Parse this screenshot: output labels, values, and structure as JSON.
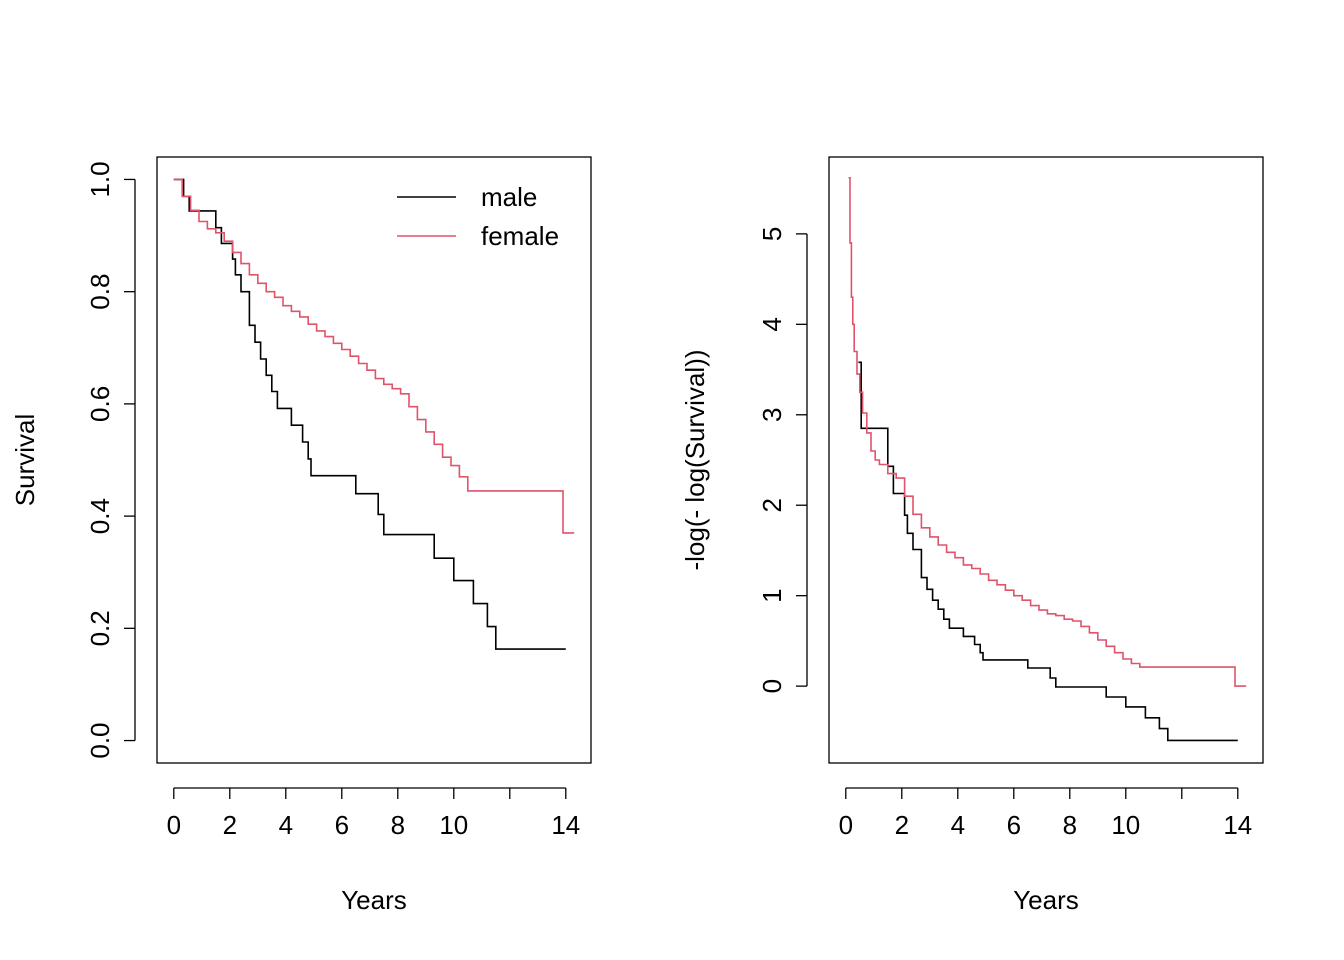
{
  "colors": {
    "male": "#000000",
    "female": "#DF536B",
    "axis": "#000000",
    "background": "#ffffff"
  },
  "chart_data": [
    {
      "type": "line",
      "step": true,
      "title": "",
      "xlabel": "Years",
      "ylabel": "Survival",
      "xlim": [
        -0.6,
        14.9
      ],
      "ylim": [
        -0.04,
        1.04
      ],
      "xticks": [
        0,
        2,
        4,
        6,
        8,
        10,
        12,
        14
      ],
      "xtick_labels": [
        "0",
        "2",
        "4",
        "6",
        "8",
        "10",
        "",
        "14"
      ],
      "yticks": [
        0,
        0.2,
        0.4,
        0.6,
        0.8,
        1.0
      ],
      "ytick_labels": [
        "0.0",
        "0.2",
        "0.4",
        "0.6",
        "0.8",
        "1.0"
      ],
      "grid": false,
      "legend": {
        "position": "top-right",
        "entries": [
          "male",
          "female"
        ]
      },
      "series": [
        {
          "name": "male",
          "x": [
            0,
            0.35,
            0.55,
            1.5,
            1.7,
            2.1,
            2.2,
            2.4,
            2.7,
            2.9,
            3.1,
            3.3,
            3.5,
            3.7,
            4.2,
            4.6,
            4.8,
            4.9,
            6.5,
            7.3,
            7.5,
            9.3,
            10.0,
            10.7,
            11.2,
            11.5,
            14.0
          ],
          "y": [
            1.0,
            0.97,
            0.944,
            0.914,
            0.886,
            0.858,
            0.83,
            0.8,
            0.74,
            0.71,
            0.68,
            0.651,
            0.622,
            0.592,
            0.562,
            0.532,
            0.502,
            0.472,
            0.44,
            0.403,
            0.367,
            0.325,
            0.285,
            0.244,
            0.203,
            0.163,
            0.163
          ]
        },
        {
          "name": "female",
          "x": [
            0,
            0.3,
            0.6,
            0.9,
            1.2,
            1.5,
            1.8,
            2.1,
            2.4,
            2.7,
            3.0,
            3.3,
            3.6,
            3.9,
            4.2,
            4.5,
            4.8,
            5.1,
            5.4,
            5.7,
            6.0,
            6.3,
            6.6,
            6.9,
            7.2,
            7.5,
            7.8,
            8.1,
            8.4,
            8.7,
            9.0,
            9.3,
            9.6,
            9.9,
            10.2,
            10.5,
            10.8,
            13.9,
            14.3
          ],
          "y": [
            1.0,
            0.97,
            0.945,
            0.925,
            0.912,
            0.905,
            0.89,
            0.87,
            0.85,
            0.83,
            0.815,
            0.8,
            0.79,
            0.775,
            0.765,
            0.755,
            0.742,
            0.73,
            0.72,
            0.708,
            0.697,
            0.685,
            0.672,
            0.66,
            0.645,
            0.635,
            0.627,
            0.618,
            0.595,
            0.572,
            0.55,
            0.528,
            0.505,
            0.49,
            0.47,
            0.445,
            0.445,
            0.37,
            0.37
          ]
        }
      ]
    },
    {
      "type": "line",
      "step": true,
      "title": "",
      "xlabel": "Years",
      "ylabel": "-log(- log(Survival))",
      "xlim": [
        -0.6,
        14.9
      ],
      "ylim": [
        -0.85,
        5.85
      ],
      "xticks": [
        0,
        2,
        4,
        6,
        8,
        10,
        12,
        14
      ],
      "xtick_labels": [
        "0",
        "2",
        "4",
        "6",
        "8",
        "10",
        "",
        "14"
      ],
      "yticks": [
        0,
        1,
        2,
        3,
        4,
        5
      ],
      "ytick_labels": [
        "0",
        "1",
        "2",
        "3",
        "4",
        "5"
      ],
      "grid": false,
      "series": [
        {
          "name": "male",
          "x": [
            0.45,
            0.55,
            1.5,
            1.7,
            2.1,
            2.2,
            2.4,
            2.7,
            2.9,
            3.1,
            3.3,
            3.5,
            3.7,
            4.2,
            4.6,
            4.8,
            4.9,
            6.5,
            7.3,
            7.5,
            9.3,
            10.0,
            10.7,
            11.2,
            11.5,
            14.0
          ],
          "y": [
            3.58,
            2.85,
            2.43,
            2.13,
            1.89,
            1.69,
            1.51,
            1.2,
            1.07,
            0.95,
            0.85,
            0.74,
            0.64,
            0.55,
            0.46,
            0.37,
            0.29,
            0.2,
            0.09,
            -0.01,
            -0.12,
            -0.23,
            -0.35,
            -0.47,
            -0.6,
            -0.6
          ]
        },
        {
          "name": "female",
          "x": [
            0.1,
            0.15,
            0.2,
            0.25,
            0.3,
            0.4,
            0.5,
            0.6,
            0.75,
            0.9,
            1.05,
            1.2,
            1.5,
            1.8,
            2.1,
            2.4,
            2.7,
            3.0,
            3.3,
            3.6,
            3.9,
            4.2,
            4.5,
            4.8,
            5.1,
            5.4,
            5.7,
            6.0,
            6.3,
            6.6,
            6.9,
            7.2,
            7.5,
            7.8,
            8.1,
            8.4,
            8.7,
            9.0,
            9.3,
            9.6,
            9.9,
            10.2,
            10.5,
            10.8,
            13.9,
            14.3
          ],
          "y": [
            5.62,
            4.9,
            4.3,
            4.0,
            3.7,
            3.45,
            3.25,
            3.02,
            2.8,
            2.6,
            2.5,
            2.45,
            2.35,
            2.3,
            2.1,
            1.9,
            1.75,
            1.65,
            1.56,
            1.48,
            1.42,
            1.34,
            1.3,
            1.24,
            1.17,
            1.12,
            1.06,
            1.0,
            0.95,
            0.89,
            0.84,
            0.8,
            0.78,
            0.74,
            0.72,
            0.66,
            0.59,
            0.51,
            0.44,
            0.37,
            0.3,
            0.25,
            0.21,
            0.21,
            0.0,
            0.0
          ]
        }
      ]
    }
  ]
}
